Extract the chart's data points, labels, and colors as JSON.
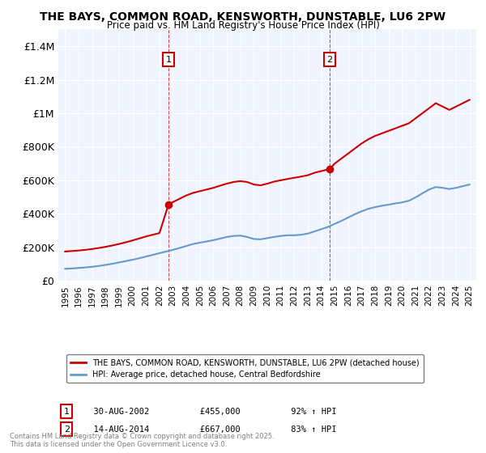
{
  "title": "THE BAYS, COMMON ROAD, KENSWORTH, DUNSTABLE, LU6 2PW",
  "subtitle": "Price paid vs. HM Land Registry's House Price Index (HPI)",
  "red_label": "THE BAYS, COMMON ROAD, KENSWORTH, DUNSTABLE, LU6 2PW (detached house)",
  "blue_label": "HPI: Average price, detached house, Central Bedfordshire",
  "annotation1": {
    "num": "1",
    "date": "30-AUG-2002",
    "price": "£455,000",
    "hpi": "92% ↑ HPI",
    "x_year": 2002.67
  },
  "annotation2": {
    "num": "2",
    "date": "14-AUG-2014",
    "price": "£667,000",
    "hpi": "83% ↑ HPI",
    "x_year": 2014.62
  },
  "ylim": [
    0,
    1500000
  ],
  "yticks": [
    0,
    200000,
    400000,
    600000,
    800000,
    1000000,
    1200000,
    1400000
  ],
  "ytick_labels": [
    "£0",
    "£200K",
    "£400K",
    "£600K",
    "£800K",
    "£1M",
    "£1.2M",
    "£1.4M"
  ],
  "xlim": [
    1994.5,
    2025.5
  ],
  "xticks": [
    1995,
    1996,
    1997,
    1998,
    1999,
    2000,
    2001,
    2002,
    2003,
    2004,
    2005,
    2006,
    2007,
    2008,
    2009,
    2010,
    2011,
    2012,
    2013,
    2014,
    2015,
    2016,
    2017,
    2018,
    2019,
    2020,
    2021,
    2022,
    2023,
    2024,
    2025
  ],
  "background_color": "#f0f4ff",
  "red_color": "#cc0000",
  "blue_color": "#6699cc",
  "vline1_x": 2002.67,
  "vline2_x": 2014.62,
  "footnote": "Contains HM Land Registry data © Crown copyright and database right 2025.\nThis data is licensed under the Open Government Licence v3.0.",
  "red_data_x": [
    1995.0,
    1995.5,
    1996.0,
    1996.5,
    1997.0,
    1997.5,
    1998.0,
    1998.5,
    1999.0,
    1999.5,
    2000.0,
    2000.5,
    2001.0,
    2001.5,
    2002.0,
    2002.67,
    2003.0,
    2003.5,
    2004.0,
    2004.5,
    2005.0,
    2005.5,
    2006.0,
    2006.5,
    2007.0,
    2007.5,
    2008.0,
    2008.5,
    2009.0,
    2009.5,
    2010.0,
    2010.5,
    2011.0,
    2011.5,
    2012.0,
    2012.5,
    2013.0,
    2013.5,
    2014.0,
    2014.62,
    2015.0,
    2015.5,
    2016.0,
    2016.5,
    2017.0,
    2017.5,
    2018.0,
    2018.5,
    2019.0,
    2019.5,
    2020.0,
    2020.5,
    2021.0,
    2021.5,
    2022.0,
    2022.5,
    2023.0,
    2023.5,
    2024.0,
    2024.5,
    2025.0
  ],
  "red_data_y": [
    175000,
    178000,
    181000,
    185000,
    190000,
    196000,
    203000,
    211000,
    220000,
    230000,
    241000,
    253000,
    265000,
    275000,
    285000,
    455000,
    470000,
    490000,
    510000,
    525000,
    535000,
    545000,
    555000,
    568000,
    580000,
    590000,
    595000,
    590000,
    575000,
    570000,
    580000,
    592000,
    600000,
    608000,
    615000,
    622000,
    630000,
    645000,
    655000,
    667000,
    700000,
    730000,
    760000,
    790000,
    820000,
    845000,
    865000,
    880000,
    895000,
    910000,
    925000,
    940000,
    970000,
    1000000,
    1030000,
    1060000,
    1040000,
    1020000,
    1040000,
    1060000,
    1080000
  ],
  "blue_data_x": [
    1995.0,
    1995.5,
    1996.0,
    1996.5,
    1997.0,
    1997.5,
    1998.0,
    1998.5,
    1999.0,
    1999.5,
    2000.0,
    2000.5,
    2001.0,
    2001.5,
    2002.0,
    2002.5,
    2003.0,
    2003.5,
    2004.0,
    2004.5,
    2005.0,
    2005.5,
    2006.0,
    2006.5,
    2007.0,
    2007.5,
    2008.0,
    2008.5,
    2009.0,
    2009.5,
    2010.0,
    2010.5,
    2011.0,
    2011.5,
    2012.0,
    2012.5,
    2013.0,
    2013.5,
    2014.0,
    2014.5,
    2015.0,
    2015.5,
    2016.0,
    2016.5,
    2017.0,
    2017.5,
    2018.0,
    2018.5,
    2019.0,
    2019.5,
    2020.0,
    2020.5,
    2021.0,
    2021.5,
    2022.0,
    2022.5,
    2023.0,
    2023.5,
    2024.0,
    2024.5,
    2025.0
  ],
  "blue_data_y": [
    72000,
    74000,
    77000,
    80000,
    84000,
    89000,
    95000,
    102000,
    110000,
    118000,
    126000,
    135000,
    145000,
    155000,
    165000,
    175000,
    185000,
    196000,
    208000,
    220000,
    228000,
    235000,
    243000,
    252000,
    262000,
    268000,
    270000,
    262000,
    250000,
    248000,
    255000,
    262000,
    268000,
    272000,
    272000,
    275000,
    282000,
    295000,
    308000,
    322000,
    340000,
    358000,
    378000,
    398000,
    415000,
    430000,
    440000,
    448000,
    455000,
    462000,
    468000,
    478000,
    498000,
    522000,
    545000,
    560000,
    555000,
    548000,
    555000,
    565000,
    575000
  ]
}
